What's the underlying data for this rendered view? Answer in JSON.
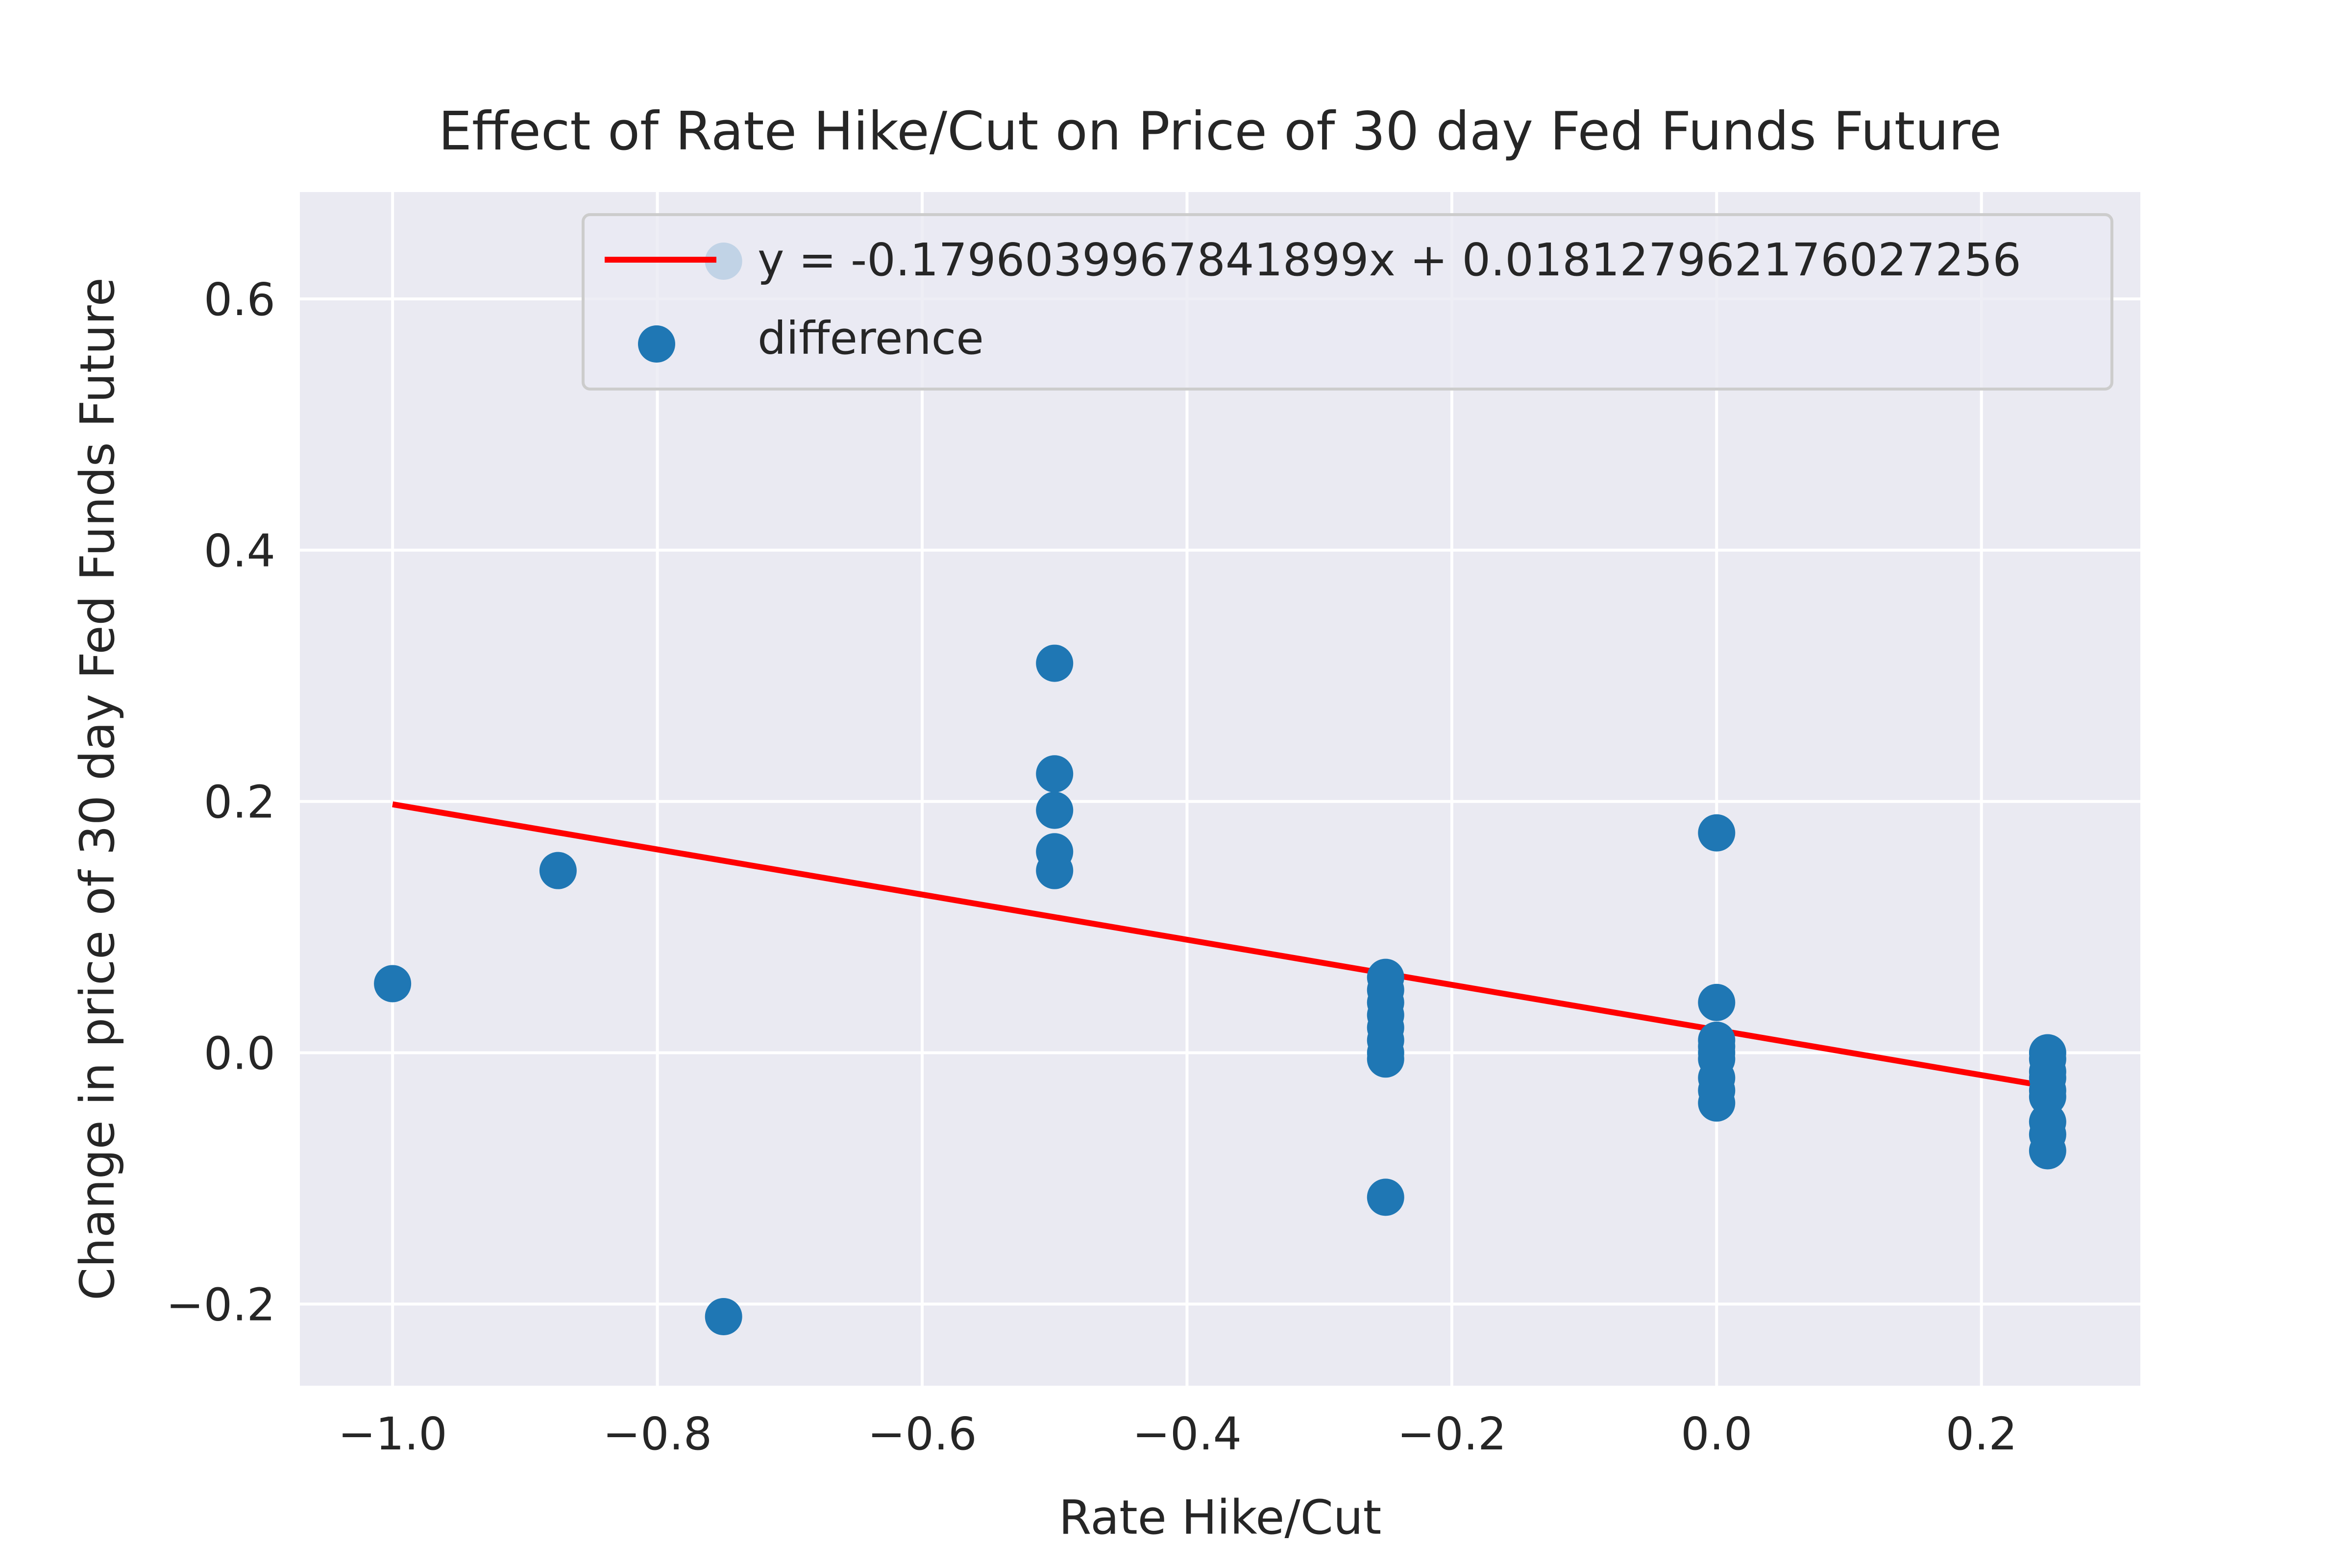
{
  "chart_data": {
    "type": "scatter",
    "title": "Effect of Rate Hike/Cut on Price of 30 day Fed Funds Future",
    "xlabel": "Rate Hike/Cut",
    "ylabel": "Change in price of 30 day Fed Funds Future",
    "xlim": [
      -1.07,
      0.32
    ],
    "ylim": [
      -0.265,
      0.685
    ],
    "x_ticks": [
      -1.0,
      -0.8,
      -0.6,
      -0.4,
      -0.2,
      0.0,
      0.2
    ],
    "x_tick_labels": [
      "−1.0",
      "−0.8",
      "−0.6",
      "−0.4",
      "−0.2",
      "0.0",
      "0.2"
    ],
    "y_ticks": [
      -0.2,
      0.0,
      0.2,
      0.4,
      0.6
    ],
    "y_tick_labels": [
      "−0.2",
      "0.0",
      "0.2",
      "0.4",
      "0.6"
    ],
    "grid": true,
    "legend_position": "top-right",
    "series": [
      {
        "name": "difference",
        "kind": "scatter",
        "color": "#1f77b4",
        "points": [
          {
            "x": -1.0,
            "y": 0.055
          },
          {
            "x": -0.875,
            "y": 0.145
          },
          {
            "x": -0.75,
            "y": -0.21
          },
          {
            "x": -0.75,
            "y": 0.63
          },
          {
            "x": -0.5,
            "y": 0.31
          },
          {
            "x": -0.5,
            "y": 0.222
          },
          {
            "x": -0.5,
            "y": 0.193
          },
          {
            "x": -0.5,
            "y": 0.16
          },
          {
            "x": -0.5,
            "y": 0.145
          },
          {
            "x": -0.25,
            "y": 0.06
          },
          {
            "x": -0.25,
            "y": 0.05
          },
          {
            "x": -0.25,
            "y": 0.04
          },
          {
            "x": -0.25,
            "y": 0.03
          },
          {
            "x": -0.25,
            "y": 0.02
          },
          {
            "x": -0.25,
            "y": 0.01
          },
          {
            "x": -0.25,
            "y": 0.0
          },
          {
            "x": -0.25,
            "y": -0.005
          },
          {
            "x": -0.25,
            "y": -0.115
          },
          {
            "x": 0.0,
            "y": 0.175
          },
          {
            "x": 0.0,
            "y": 0.04
          },
          {
            "x": 0.0,
            "y": 0.01
          },
          {
            "x": 0.0,
            "y": 0.005
          },
          {
            "x": 0.0,
            "y": 0.0
          },
          {
            "x": 0.0,
            "y": -0.005
          },
          {
            "x": 0.0,
            "y": -0.02
          },
          {
            "x": 0.0,
            "y": -0.03
          },
          {
            "x": 0.0,
            "y": -0.04
          },
          {
            "x": 0.25,
            "y": 0.0
          },
          {
            "x": 0.25,
            "y": -0.005
          },
          {
            "x": 0.25,
            "y": -0.015
          },
          {
            "x": 0.25,
            "y": -0.02
          },
          {
            "x": 0.25,
            "y": -0.03
          },
          {
            "x": 0.25,
            "y": -0.035
          },
          {
            "x": 0.25,
            "y": -0.055
          },
          {
            "x": 0.25,
            "y": -0.065
          },
          {
            "x": 0.25,
            "y": -0.078
          }
        ]
      },
      {
        "name": "y = -0.1796039967841899x + 0.018127962176027256",
        "kind": "line",
        "color": "#ff0000",
        "slope": -0.1796039967841899,
        "intercept": 0.018127962176027256,
        "x_range": [
          -1.0,
          0.25
        ]
      }
    ]
  }
}
